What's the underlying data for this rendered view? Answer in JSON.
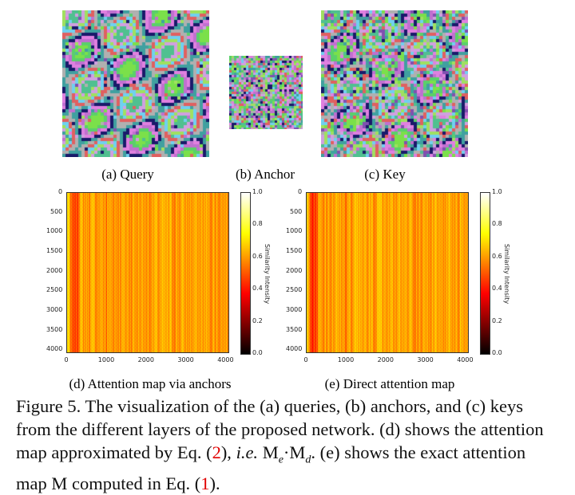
{
  "subfigures": {
    "a": "(a) Query",
    "b": "(b) Anchor",
    "c": "(c) Key",
    "d": "(d) Attention map via anchors",
    "e": "(e) Direct attention map"
  },
  "caption": {
    "part1": "Figure 5. The visualization of the (a) queries, (b) anchors, and (c) keys from the different layers of the proposed network. (d) shows the attention map approximated by Eq. (",
    "ref2": "2",
    "part2": "), ",
    "ie": "i.e.",
    "me": " M",
    "me_sub": "e",
    "dot": "·M",
    "md_sub": "d",
    "part3": ". (e) shows the exact attention map M computed in Eq. (",
    "ref1": "1",
    "part4": ")."
  },
  "chart_data": [
    {
      "type": "heatmap",
      "title": "(d) Attention map via anchors",
      "x_ticks": [
        "0",
        "1000",
        "2000",
        "3000",
        "4000"
      ],
      "y_ticks": [
        "0",
        "500",
        "1000",
        "1500",
        "2000",
        "2500",
        "3000",
        "3500",
        "4000"
      ],
      "xlim": [
        0,
        4096
      ],
      "ylim": [
        4096,
        0
      ],
      "colorbar": {
        "label": "Similarity Intensity",
        "ticks": [
          "0.0",
          "0.2",
          "0.4",
          "0.6",
          "0.8",
          "1.0"
        ],
        "range": [
          0,
          1
        ],
        "colormap": "hot"
      },
      "typical_value": 0.6,
      "pattern": "vertical stripes; darker (~0.4) columns near x≈100-300 and x≈1000"
    },
    {
      "type": "heatmap",
      "title": "(e) Direct attention map",
      "x_ticks": [
        "0",
        "1000",
        "2000",
        "3000",
        "4000"
      ],
      "y_ticks": [
        "0",
        "500",
        "1000",
        "1500",
        "2000",
        "2500",
        "3000",
        "3500",
        "4000"
      ],
      "xlim": [
        0,
        4096
      ],
      "ylim": [
        4096,
        0
      ],
      "colorbar": {
        "label": "Similarity Intensity",
        "ticks": [
          "0.0",
          "0.2",
          "0.4",
          "0.6",
          "0.8",
          "1.0"
        ],
        "range": [
          0,
          1
        ],
        "colormap": "hot"
      },
      "typical_value": 0.6,
      "pattern": "vertical stripes; darker (~0.4) columns near x≈100-300 and x≈1000"
    }
  ]
}
